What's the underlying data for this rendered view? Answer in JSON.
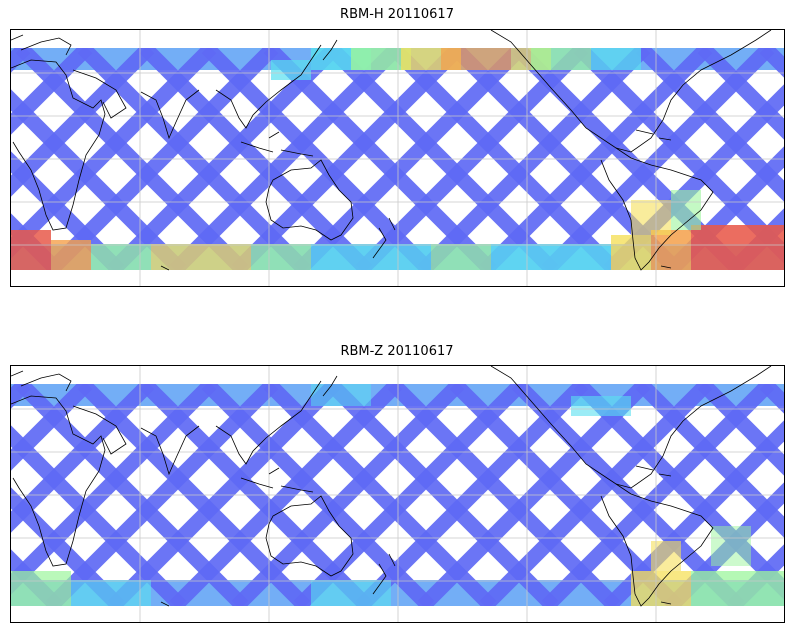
{
  "panels": [
    {
      "id": "top",
      "title": "RBM-H 20110617"
    },
    {
      "id": "bottom",
      "title": "RBM-Z 20110617"
    }
  ],
  "colors": {
    "low": "#5f6af5",
    "low2": "#5ba0f5",
    "mid": "#58e0f0",
    "mid2": "#9cf59c",
    "high": "#f5e05a",
    "high2": "#f5a04a",
    "max": "#e8594a",
    "coast": "#000000",
    "grid": "#c8c8c8"
  }
}
